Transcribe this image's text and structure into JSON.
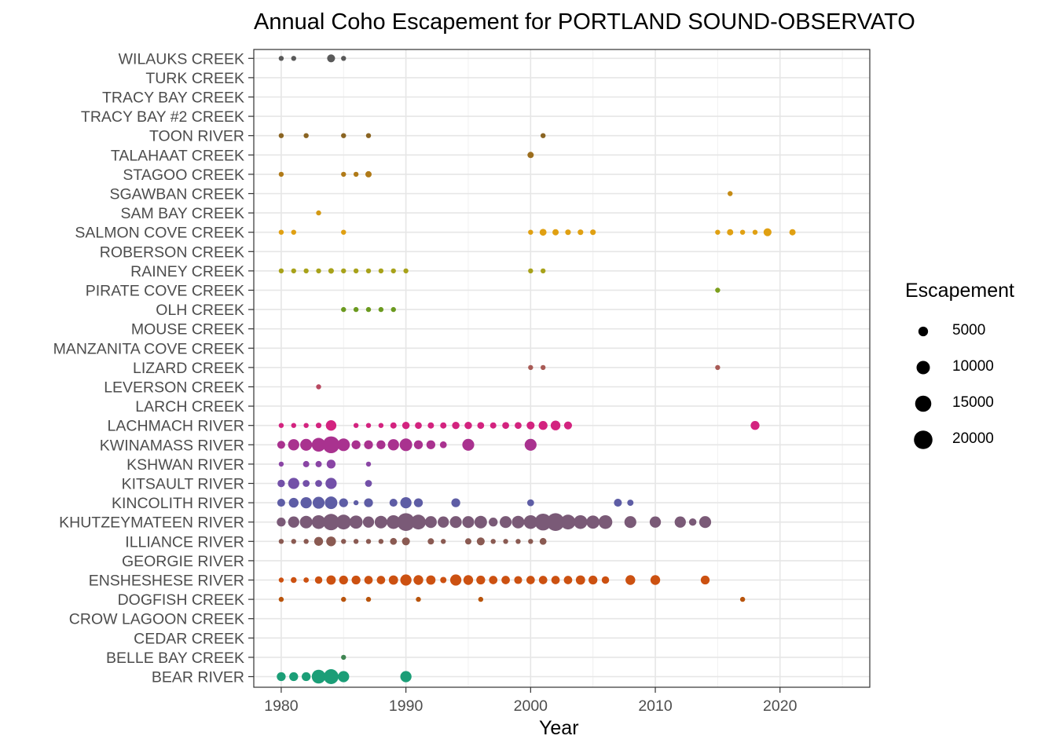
{
  "chart_data": {
    "type": "scatter",
    "title": "Annual Coho Escapement for PORTLAND SOUND-OBSERVATO",
    "xlabel": "Year",
    "ylabel": "",
    "xlim": [
      1977.8,
      2027.2
    ],
    "x_ticks": [
      "1980",
      "1990",
      "2000",
      "2010",
      "2020"
    ],
    "grid": true,
    "legend": {
      "title": "Escapement",
      "position": "right",
      "entries": [
        {
          "label": "5000",
          "value": 5000
        },
        {
          "label": "10000",
          "value": 10000
        },
        {
          "label": "15000",
          "value": 15000
        },
        {
          "label": "20000",
          "value": 20000
        }
      ]
    },
    "categories": [
      "BEAR RIVER",
      "BELLE BAY CREEK",
      "CEDAR CREEK",
      "CROW LAGOON CREEK",
      "DOGFISH CREEK",
      "ENSHESHESE RIVER",
      "GEORGIE RIVER",
      "ILLIANCE RIVER",
      "KHUTZEYMATEEN RIVER",
      "KINCOLITH RIVER",
      "KITSAULT RIVER",
      "KSHWAN RIVER",
      "KWINAMASS RIVER",
      "LACHMACH RIVER",
      "LARCH CREEK",
      "LEVERSON CREEK",
      "LIZARD CREEK",
      "MANZANITA COVE CREEK",
      "MOUSE CREEK",
      "OLH CREEK",
      "PIRATE COVE CREEK",
      "RAINEY CREEK",
      "ROBERSON CREEK",
      "SALMON COVE CREEK",
      "SAM BAY CREEK",
      "SGAWBAN CREEK",
      "STAGOO CREEK",
      "TALAHAAT CREEK",
      "TOON RIVER",
      "TRACY BAY #2 CREEK",
      "TRACY BAY CREEK",
      "TURK CREEK",
      "WILAUKS CREEK"
    ],
    "series": [
      {
        "name": "BEAR RIVER",
        "color": "#1B9E77",
        "x": [
          1980,
          1981,
          1982,
          1983,
          1984,
          1985,
          1990
        ],
        "values": [
          5000,
          5000,
          5000,
          12000,
          14000,
          8000,
          8000
        ]
      },
      {
        "name": "BELLE BAY CREEK",
        "color": "#3F8552",
        "x": [
          1985
        ],
        "values": [
          1000
        ]
      },
      {
        "name": "CEDAR CREEK",
        "color": "#636C2E",
        "x": [],
        "values": []
      },
      {
        "name": "CROW LAGOON CREEK",
        "color": "#875409",
        "x": [],
        "values": []
      },
      {
        "name": "DOGFISH CREEK",
        "color": "#B8540C",
        "x": [
          1980,
          1985,
          1987,
          1991,
          1996,
          2017
        ],
        "values": [
          900,
          1500,
          800,
          1500,
          500,
          1500
        ]
      },
      {
        "name": "ENSHESHESE RIVER",
        "color": "#CC5111",
        "x": [
          1980,
          1981,
          1982,
          1983,
          1984,
          1985,
          1986,
          1987,
          1988,
          1989,
          1990,
          1991,
          1992,
          1993,
          1994,
          1995,
          1996,
          1997,
          1998,
          1999,
          2000,
          2001,
          2002,
          2003,
          2004,
          2005,
          2006,
          2008,
          2010,
          2014
        ],
        "values": [
          1500,
          2200,
          1800,
          3500,
          5500,
          5000,
          5000,
          4500,
          4500,
          5500,
          8000,
          6000,
          5500,
          2500,
          8000,
          6000,
          5000,
          4500,
          4500,
          4000,
          4500,
          4500,
          4500,
          4500,
          5500,
          5000,
          3500,
          6000,
          6000,
          5000
        ]
      },
      {
        "name": "GEORGIE RIVER",
        "color": "#A06A3F",
        "x": [],
        "values": []
      },
      {
        "name": "ILLIANCE RIVER",
        "color": "#8A5A52",
        "x": [
          1980,
          1981,
          1982,
          1983,
          1984,
          1985,
          1986,
          1987,
          1988,
          1989,
          1990,
          1992,
          1993,
          1995,
          1996,
          1997,
          1998,
          1999,
          2000,
          2001
        ],
        "values": [
          1500,
          1500,
          1500,
          5000,
          6000,
          1500,
          1500,
          1500,
          1500,
          3000,
          4000,
          2500,
          1500,
          2500,
          4000,
          1500,
          1500,
          1500,
          1500,
          3000
        ]
      },
      {
        "name": "KHUTZEYMATEEN RIVER",
        "color": "#7A5A77",
        "x": [
          1980,
          1981,
          1982,
          1983,
          1984,
          1985,
          1986,
          1987,
          1988,
          1989,
          1990,
          1991,
          1992,
          1993,
          1994,
          1995,
          1996,
          1997,
          1998,
          1999,
          2000,
          2001,
          2002,
          2003,
          2004,
          2005,
          2006,
          2008,
          2010,
          2012,
          2013,
          2014
        ],
        "values": [
          5000,
          8000,
          10000,
          12000,
          17000,
          14000,
          11000,
          8000,
          10000,
          12000,
          20000,
          14000,
          9000,
          8000,
          9000,
          9000,
          10000,
          5000,
          9000,
          10000,
          12000,
          18000,
          20000,
          14000,
          12000,
          11000,
          12000,
          9000,
          8000,
          8000,
          3500,
          9000
        ]
      },
      {
        "name": "KINCOLITH RIVER",
        "color": "#5E5DA5",
        "x": [
          1980,
          1981,
          1982,
          1983,
          1984,
          1985,
          1986,
          1987,
          1989,
          1990,
          1991,
          1994,
          2000,
          2007,
          2008
        ],
        "values": [
          4000,
          6000,
          8000,
          9000,
          10000,
          5000,
          1500,
          5000,
          4000,
          8000,
          5000,
          5000,
          3000,
          4000,
          2500
        ]
      },
      {
        "name": "KITSAULT RIVER",
        "color": "#7350A8",
        "x": [
          1980,
          1981,
          1982,
          1983,
          1984,
          1987
        ],
        "values": [
          3500,
          8000,
          3000,
          3000,
          8000,
          3000
        ]
      },
      {
        "name": "KSHWAN RIVER",
        "color": "#8A45A5",
        "x": [
          1980,
          1982,
          1983,
          1984,
          1987
        ],
        "values": [
          1500,
          2500,
          2500,
          5000,
          800
        ]
      },
      {
        "name": "KWINAMASS RIVER",
        "color": "#A9328F",
        "x": [
          1980,
          1981,
          1982,
          1983,
          1984,
          1985,
          1986,
          1987,
          1988,
          1989,
          1990,
          1991,
          1992,
          1993,
          1995,
          2000
        ],
        "values": [
          4000,
          8000,
          9000,
          12000,
          18000,
          10000,
          5000,
          5000,
          5000,
          8000,
          10000,
          5000,
          5000,
          3000,
          9000,
          9000
        ]
      },
      {
        "name": "LACHMACH RIVER",
        "color": "#D3237F",
        "x": [
          1980,
          1981,
          1982,
          1983,
          1984,
          1986,
          1987,
          1988,
          1989,
          1990,
          1991,
          1992,
          1993,
          1994,
          1995,
          1996,
          1997,
          1998,
          1999,
          2000,
          2001,
          2002,
          2003,
          2018
        ],
        "values": [
          1500,
          1500,
          1500,
          2000,
          7000,
          1500,
          1500,
          1500,
          2500,
          3500,
          3000,
          2500,
          2500,
          3500,
          3500,
          3000,
          2500,
          3000,
          3000,
          4000,
          5000,
          6000,
          4000,
          5000
        ]
      },
      {
        "name": "LARCH CREEK",
        "color": "#C33D6E",
        "x": [],
        "values": []
      },
      {
        "name": "LEVERSON CREEK",
        "color": "#B84860",
        "x": [
          1983
        ],
        "values": [
          700
        ]
      },
      {
        "name": "LIZARD CREEK",
        "color": "#A85A55",
        "x": [
          2000,
          2001,
          2015
        ],
        "values": [
          800,
          600,
          800
        ]
      },
      {
        "name": "MANZANITA COVE CREEK",
        "color": "#8F6B45",
        "x": [],
        "values": []
      },
      {
        "name": "MOUSE CREEK",
        "color": "#7A8030",
        "x": [],
        "values": []
      },
      {
        "name": "OLH CREEK",
        "color": "#6B9A1F",
        "x": [
          1985,
          1986,
          1987,
          1988,
          1989
        ],
        "values": [
          800,
          700,
          700,
          600,
          600
        ]
      },
      {
        "name": "PIRATE COVE CREEK",
        "color": "#7C9F1C",
        "x": [
          2015
        ],
        "values": [
          700
        ]
      },
      {
        "name": "RAINEY CREEK",
        "color": "#A8A21A",
        "x": [
          1980,
          1981,
          1982,
          1983,
          1984,
          1985,
          1986,
          1987,
          1988,
          1989,
          1990,
          2000,
          2001
        ],
        "values": [
          1500,
          1500,
          1500,
          1500,
          2000,
          1500,
          1500,
          1500,
          1000,
          1000,
          1500,
          1000,
          1000
        ]
      },
      {
        "name": "ROBERSON CREEK",
        "color": "#C9A414",
        "x": [],
        "values": []
      },
      {
        "name": "SALMON COVE CREEK",
        "color": "#E0A012",
        "x": [
          1980,
          1981,
          1985,
          2000,
          2001,
          2002,
          2003,
          2004,
          2005,
          2015,
          2016,
          2017,
          2018,
          2019,
          2021
        ],
        "values": [
          900,
          600,
          900,
          1500,
          3000,
          2500,
          2000,
          2000,
          2000,
          1500,
          2500,
          1500,
          1000,
          4000,
          2500
        ]
      },
      {
        "name": "SAM BAY CREEK",
        "color": "#D49A14",
        "x": [
          1983
        ],
        "values": [
          600
        ]
      },
      {
        "name": "SGAWBAN CREEK",
        "color": "#C48A14",
        "x": [
          2016
        ],
        "values": [
          700
        ]
      },
      {
        "name": "STAGOO CREEK",
        "color": "#B07A18",
        "x": [
          1980,
          1985,
          1986,
          1987
        ],
        "values": [
          1500,
          1000,
          1500,
          2500
        ]
      },
      {
        "name": "TALAHAAT CREEK",
        "color": "#9C6E1E",
        "x": [
          2000
        ],
        "values": [
          2500
        ]
      },
      {
        "name": "TOON RIVER",
        "color": "#8A6422",
        "x": [
          1980,
          1982,
          1985,
          1987,
          2001
        ],
        "values": [
          900,
          1500,
          1200,
          600,
          1500
        ]
      },
      {
        "name": "TRACY BAY #2 CREEK",
        "color": "#7A6A3E",
        "x": [],
        "values": []
      },
      {
        "name": "TRACY BAY CREEK",
        "color": "#6E6E60",
        "x": [],
        "values": []
      },
      {
        "name": "TURK CREEK",
        "color": "#666666",
        "x": [],
        "values": []
      },
      {
        "name": "WILAUKS CREEK",
        "color": "#595959",
        "x": [
          1980,
          1981,
          1984,
          1985
        ],
        "values": [
          900,
          800,
          4000,
          900
        ]
      }
    ]
  }
}
